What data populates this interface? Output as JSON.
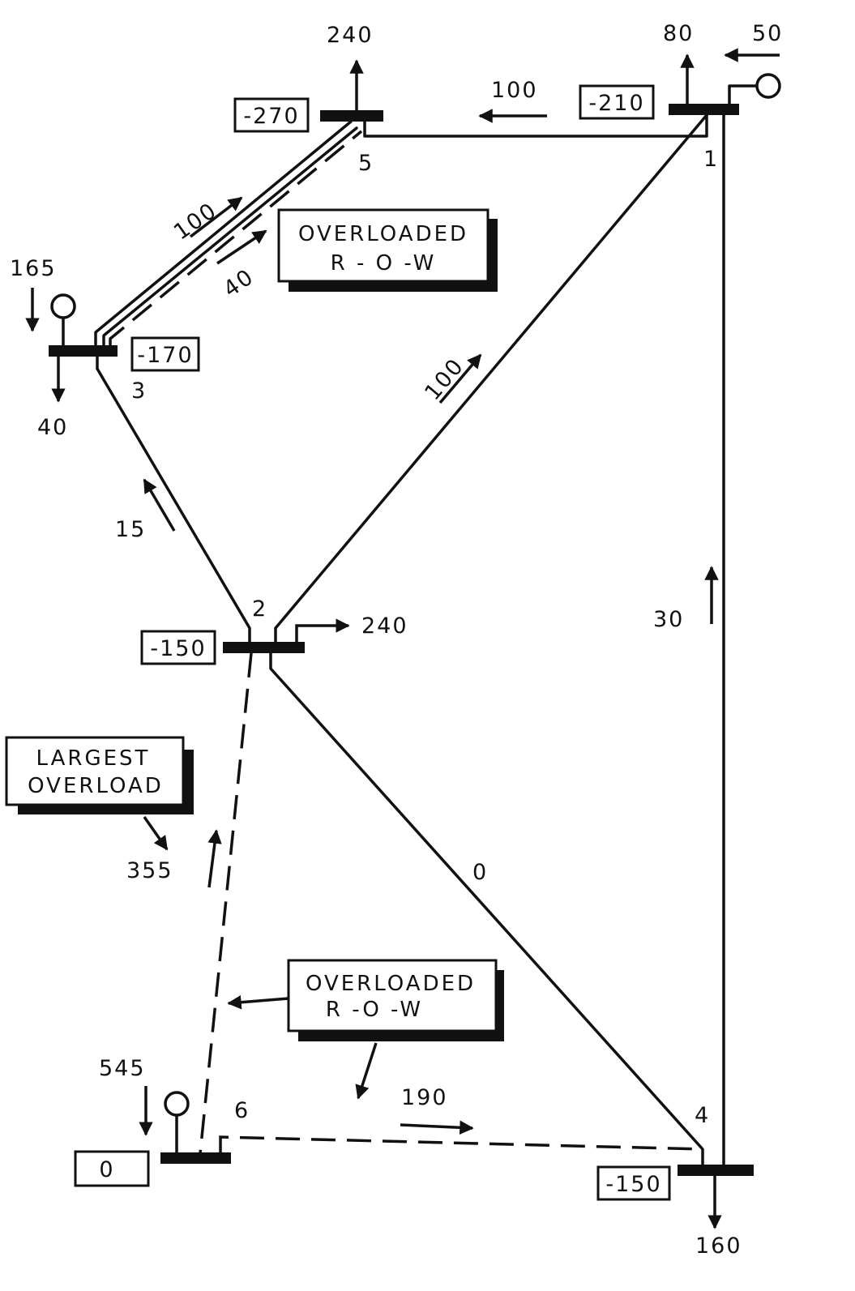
{
  "buses": [
    {
      "id": "1",
      "label": "1",
      "angle": "-210"
    },
    {
      "id": "2",
      "label": "2",
      "angle": "-150"
    },
    {
      "id": "3",
      "label": "3",
      "angle": "-170"
    },
    {
      "id": "4",
      "label": "4",
      "angle": "-150"
    },
    {
      "id": "5",
      "label": "5",
      "angle": "-270"
    },
    {
      "id": "6",
      "label": "6",
      "angle": "0"
    }
  ],
  "injections": {
    "bus5_load": "240",
    "bus1_load": "80",
    "bus1_gen": "50",
    "bus3_gen": "165",
    "bus3_load": "40",
    "bus2_load": "240",
    "bus6_gen": "545",
    "bus4_load": "160"
  },
  "flows": {
    "line_1_5": "100",
    "line_3_5_a": "100",
    "line_3_5_b": "40",
    "line_2_1": "100",
    "line_2_3": "15",
    "line_4_1": "30",
    "line_2_4": "0",
    "line_6_2": "355",
    "line_6_4": "190"
  },
  "notes": {
    "overloaded_row_top": {
      "line1": "OVERLOADED",
      "line2": "R - O -W"
    },
    "largest_overload": {
      "line1": "LARGEST",
      "line2": "OVERLOAD"
    },
    "overloaded_row_bottom": {
      "line1": "OVERLOADED",
      "line2": "R -O -W"
    }
  }
}
